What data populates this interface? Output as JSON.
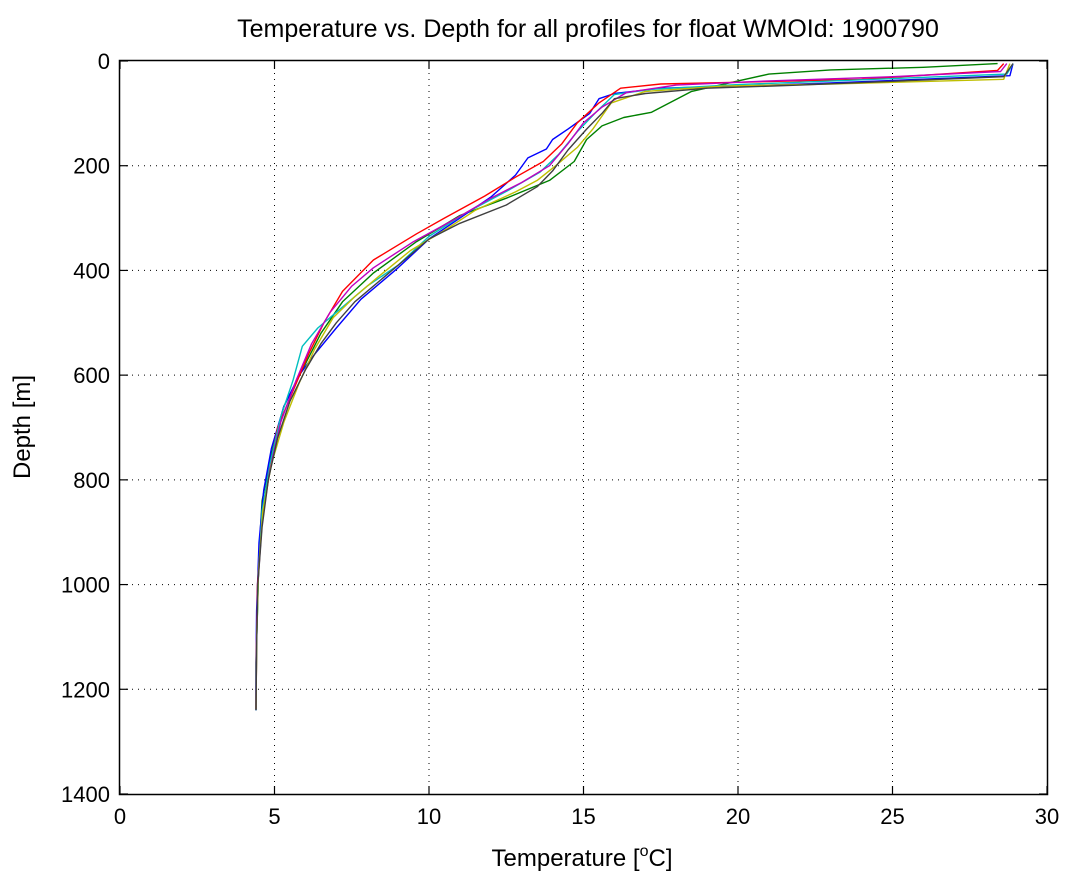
{
  "chart_data": {
    "type": "line",
    "title": "Temperature vs. Depth for all profiles for float WMOId: 1900790",
    "xlabel": "Temperature [",
    "xlabel_sup": "o",
    "xlabel_end": "C]",
    "ylabel": "Depth [m]",
    "xlim": [
      0,
      30
    ],
    "ylim": [
      0,
      1400
    ],
    "y_reversed": true,
    "grid": true,
    "xticks": [
      0,
      5,
      10,
      15,
      20,
      25,
      30
    ],
    "yticks": [
      0,
      200,
      400,
      600,
      800,
      1000,
      1200,
      1400
    ],
    "series": [
      {
        "color": "#008000",
        "points": [
          [
            28.4,
            5
          ],
          [
            26,
            12
          ],
          [
            23,
            17
          ],
          [
            21,
            25
          ],
          [
            20,
            38
          ],
          [
            18.5,
            58
          ],
          [
            17.2,
            98
          ],
          [
            16.3,
            108
          ],
          [
            15.6,
            124
          ],
          [
            15.1,
            150
          ],
          [
            14.7,
            192
          ],
          [
            13.9,
            228
          ],
          [
            12.5,
            262
          ],
          [
            11,
            295
          ],
          [
            9.6,
            345
          ],
          [
            8.2,
            405
          ],
          [
            7.2,
            460
          ],
          [
            6.5,
            520
          ],
          [
            5.9,
            590
          ],
          [
            5.3,
            660
          ],
          [
            4.9,
            750
          ],
          [
            4.6,
            840
          ],
          [
            4.5,
            940
          ],
          [
            4.45,
            1050
          ],
          [
            4.4,
            1150
          ],
          [
            4.4,
            1238
          ]
        ]
      },
      {
        "color": "#0000ff",
        "points": [
          [
            28.9,
            5
          ],
          [
            28.8,
            28
          ],
          [
            23,
            42
          ],
          [
            20,
            48
          ],
          [
            17.5,
            52
          ],
          [
            16,
            62
          ],
          [
            15.5,
            72
          ],
          [
            15.2,
            100
          ],
          [
            14.5,
            130
          ],
          [
            14,
            150
          ],
          [
            13.8,
            168
          ],
          [
            13.2,
            185
          ],
          [
            12.8,
            218
          ],
          [
            12,
            260
          ],
          [
            11,
            300
          ],
          [
            10,
            340
          ],
          [
            9,
            395
          ],
          [
            7.8,
            455
          ],
          [
            7,
            510
          ],
          [
            6.3,
            560
          ],
          [
            5.8,
            600
          ],
          [
            5.3,
            660
          ],
          [
            4.9,
            740
          ],
          [
            4.65,
            820
          ],
          [
            4.5,
            920
          ],
          [
            4.42,
            1050
          ],
          [
            4.4,
            1150
          ],
          [
            4.4,
            1240
          ]
        ]
      },
      {
        "color": "#ff0000",
        "points": [
          [
            28.6,
            5
          ],
          [
            28.4,
            18
          ],
          [
            24,
            35
          ],
          [
            20.5,
            40
          ],
          [
            17.5,
            44
          ],
          [
            16.2,
            52
          ],
          [
            15.5,
            80
          ],
          [
            14.8,
            118
          ],
          [
            14.3,
            158
          ],
          [
            13.7,
            192
          ],
          [
            12.8,
            222
          ],
          [
            11.8,
            258
          ],
          [
            10.5,
            300
          ],
          [
            9.6,
            330
          ],
          [
            8.2,
            380
          ],
          [
            7.2,
            440
          ],
          [
            6.6,
            500
          ],
          [
            6.1,
            560
          ],
          [
            5.6,
            630
          ],
          [
            5.1,
            700
          ],
          [
            4.8,
            790
          ],
          [
            4.6,
            880
          ],
          [
            4.45,
            1000
          ],
          [
            4.42,
            1120
          ],
          [
            4.4,
            1238
          ]
        ]
      },
      {
        "color": "#00bfbf",
        "points": [
          [
            28.9,
            5
          ],
          [
            28.7,
            25
          ],
          [
            24,
            36
          ],
          [
            20,
            45
          ],
          [
            17.2,
            54
          ],
          [
            16,
            64
          ],
          [
            15.4,
            98
          ],
          [
            14.8,
            135
          ],
          [
            14.2,
            178
          ],
          [
            13.6,
            212
          ],
          [
            12.6,
            246
          ],
          [
            11.2,
            290
          ],
          [
            10,
            335
          ],
          [
            9,
            390
          ],
          [
            8,
            430
          ],
          [
            7,
            480
          ],
          [
            6.4,
            510
          ],
          [
            5.9,
            545
          ],
          [
            5.6,
            610
          ],
          [
            5.2,
            680
          ],
          [
            4.85,
            770
          ],
          [
            4.6,
            860
          ],
          [
            4.48,
            980
          ],
          [
            4.42,
            1110
          ],
          [
            4.4,
            1240
          ]
        ]
      },
      {
        "color": "#bf00bf",
        "points": [
          [
            28.7,
            5
          ],
          [
            28.5,
            20
          ],
          [
            25,
            30
          ],
          [
            21,
            38
          ],
          [
            18,
            46
          ],
          [
            16.4,
            60
          ],
          [
            15.6,
            88
          ],
          [
            15,
            118
          ],
          [
            14.5,
            158
          ],
          [
            13.9,
            200
          ],
          [
            13,
            232
          ],
          [
            12,
            262
          ],
          [
            10.9,
            300
          ],
          [
            9.5,
            345
          ],
          [
            8.2,
            395
          ],
          [
            7.5,
            430
          ],
          [
            6.8,
            480
          ],
          [
            6.2,
            540
          ],
          [
            5.7,
            610
          ],
          [
            5.2,
            690
          ],
          [
            4.85,
            780
          ],
          [
            4.6,
            880
          ],
          [
            4.46,
            1000
          ],
          [
            4.41,
            1120
          ],
          [
            4.4,
            1238
          ]
        ]
      },
      {
        "color": "#bfbf00",
        "points": [
          [
            28.8,
            5
          ],
          [
            28.6,
            35
          ],
          [
            23,
            44
          ],
          [
            19.5,
            48
          ],
          [
            17,
            58
          ],
          [
            15.9,
            80
          ],
          [
            15.3,
            130
          ],
          [
            14.8,
            165
          ],
          [
            14.1,
            200
          ],
          [
            13.5,
            228
          ],
          [
            12.8,
            250
          ],
          [
            11.5,
            285
          ],
          [
            10.6,
            320
          ],
          [
            9.4,
            362
          ],
          [
            8.4,
            410
          ],
          [
            7.6,
            450
          ],
          [
            6.9,
            490
          ],
          [
            6.3,
            550
          ],
          [
            5.8,
            615
          ],
          [
            5.3,
            690
          ],
          [
            4.9,
            770
          ],
          [
            4.62,
            860
          ],
          [
            4.48,
            980
          ],
          [
            4.42,
            1110
          ],
          [
            4.4,
            1238
          ]
        ]
      },
      {
        "color": "#404040",
        "points": [
          [
            28.9,
            5
          ],
          [
            28.6,
            30
          ],
          [
            22,
            46
          ],
          [
            19,
            52
          ],
          [
            17,
            62
          ],
          [
            16,
            72
          ],
          [
            15.6,
            100
          ],
          [
            15.1,
            130
          ],
          [
            14.5,
            170
          ],
          [
            14,
            210
          ],
          [
            13.5,
            240
          ],
          [
            12.5,
            275
          ],
          [
            11,
            310
          ],
          [
            10,
            340
          ],
          [
            9.2,
            380
          ],
          [
            8.4,
            420
          ],
          [
            7.6,
            460
          ],
          [
            7,
            500
          ],
          [
            6.5,
            540
          ],
          [
            6,
            590
          ],
          [
            5.5,
            650
          ],
          [
            5.1,
            720
          ],
          [
            4.8,
            800
          ],
          [
            4.6,
            890
          ],
          [
            4.46,
            1000
          ],
          [
            4.42,
            1120
          ],
          [
            4.4,
            1240
          ]
        ]
      }
    ]
  }
}
